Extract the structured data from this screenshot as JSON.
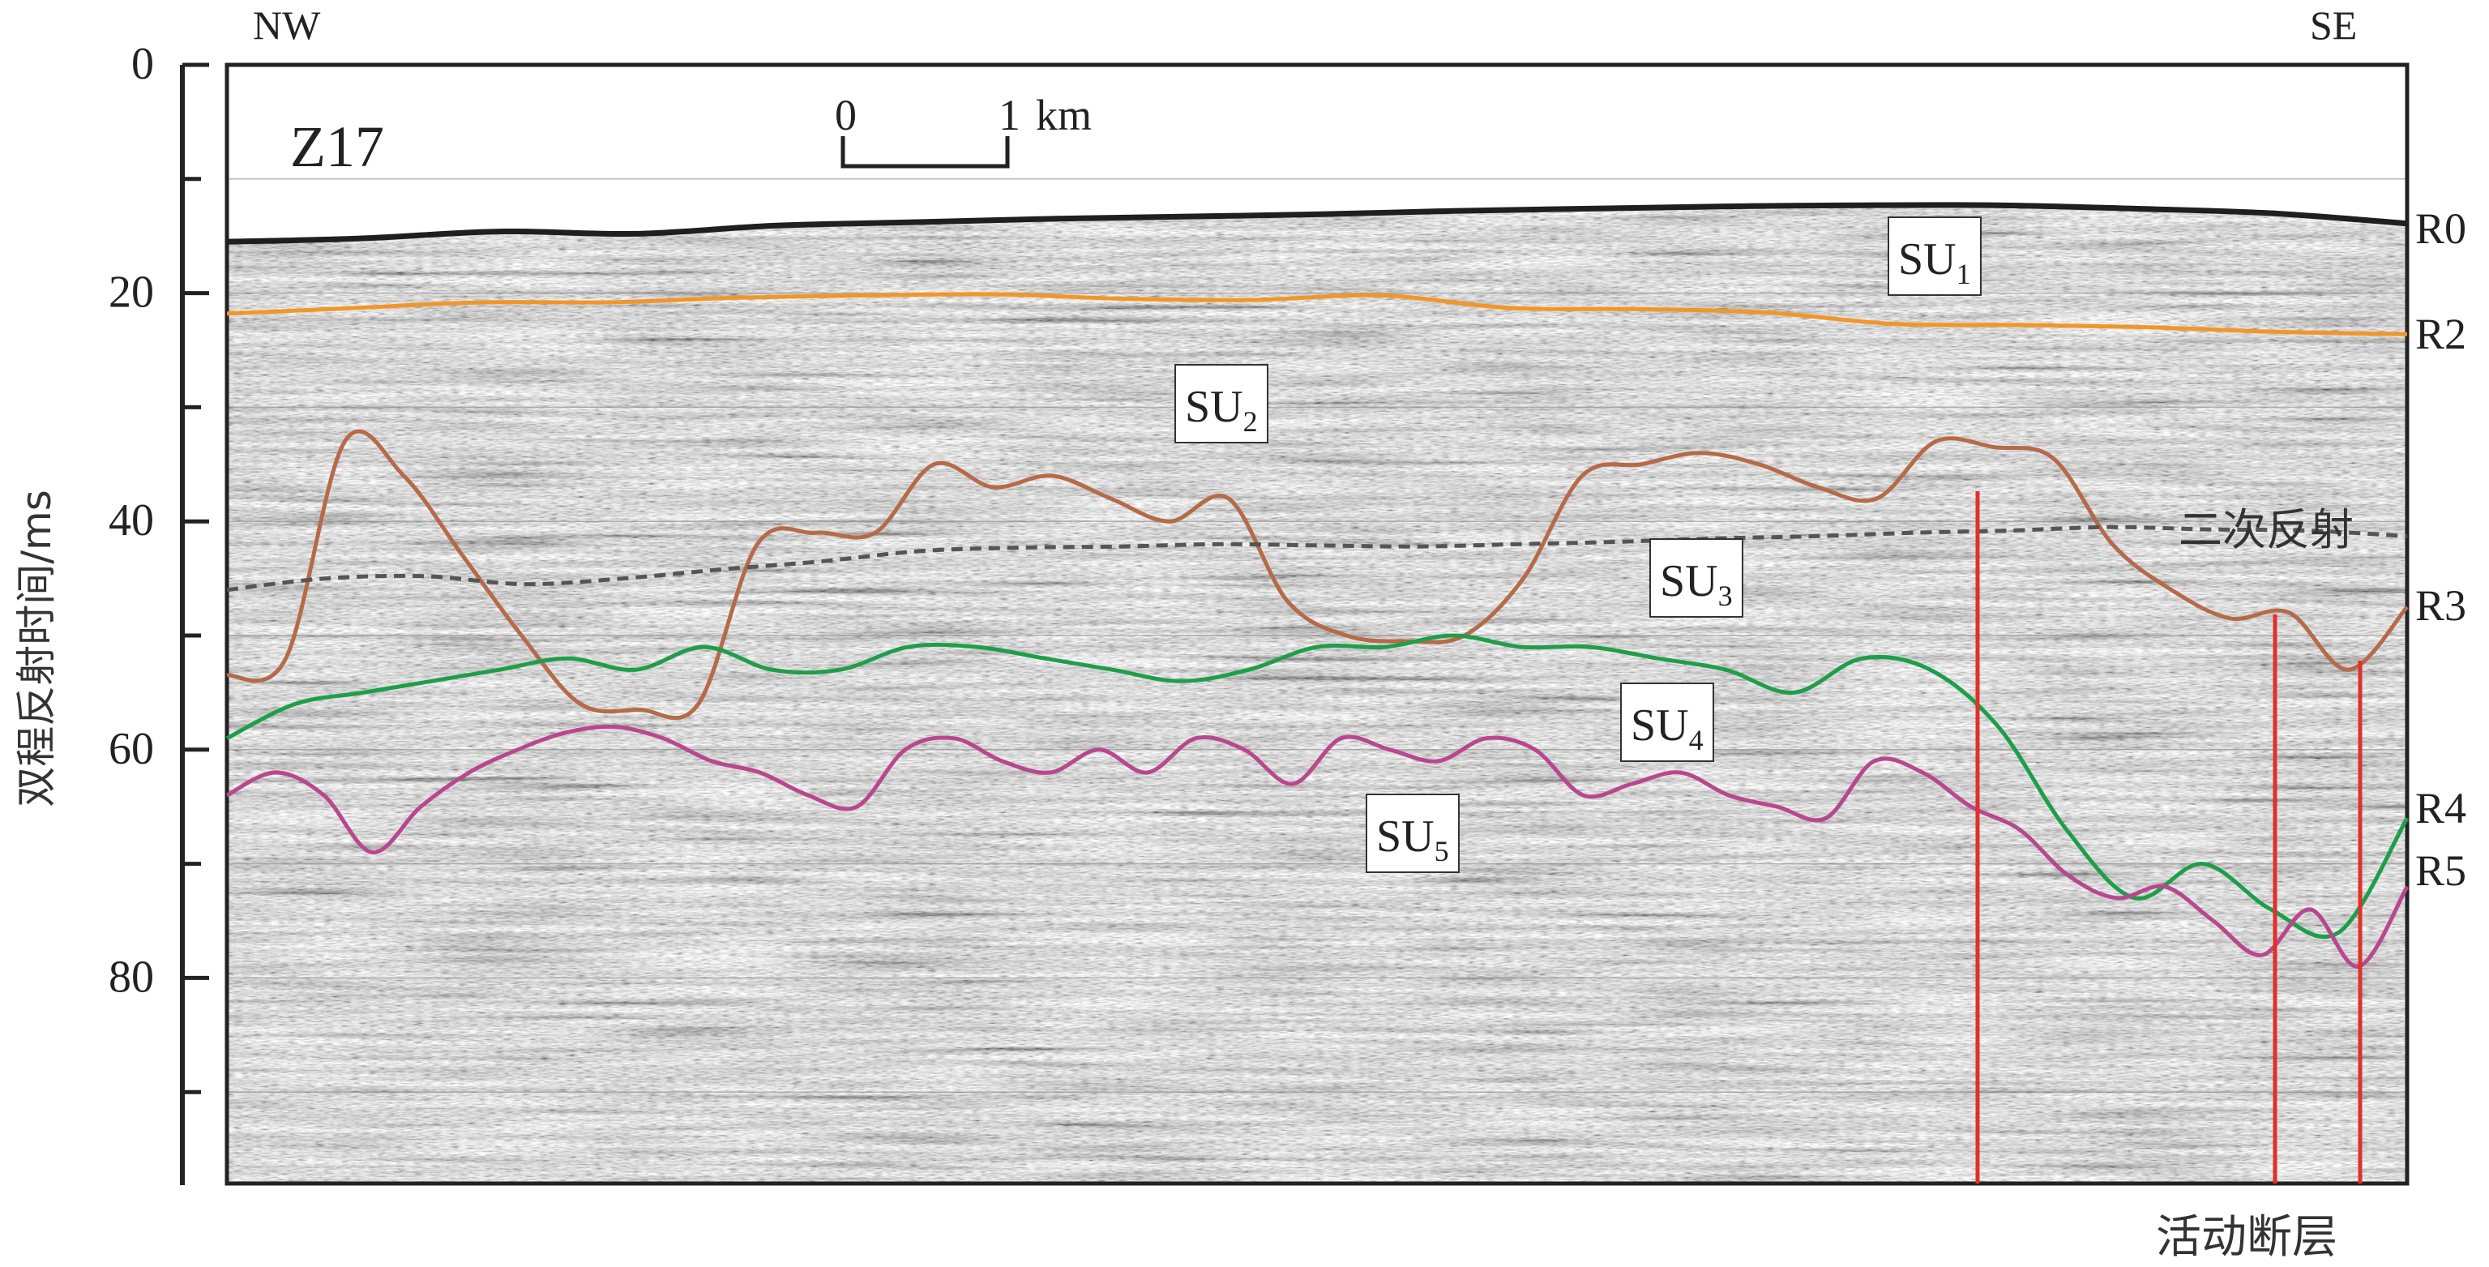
{
  "profile_id": "Z17",
  "orientation": {
    "left": "NW",
    "right": "SE"
  },
  "y_axis": {
    "label": "双程反射时间/ms",
    "ticks": [
      0,
      20,
      40,
      60,
      80
    ],
    "range": [
      0,
      98
    ],
    "reversed": true
  },
  "scale_bar": {
    "start": "0",
    "end": "1",
    "unit": "km",
    "length_km": 1
  },
  "horizons": [
    {
      "name": "R0",
      "color": "#1f1f1f",
      "depth_ms": [
        15.5,
        15.2,
        14.6,
        14.8,
        14.1,
        13.8,
        13.5,
        13.3,
        13.1,
        12.8,
        12.6,
        12.4,
        12.3,
        12.3,
        12.6,
        13.0,
        13.9
      ]
    },
    {
      "name": "R2",
      "color": "#f0962a",
      "depth_ms": [
        21.8,
        21.3,
        20.8,
        20.8,
        20.4,
        20.2,
        20.1,
        20.5,
        20.6,
        20.2,
        21.3,
        21.4,
        21.7,
        22.7,
        22.8,
        23.0,
        23.4,
        23.6
      ]
    },
    {
      "name": "R3",
      "color": "#b56a4a",
      "depth_ms": [
        53.5,
        52,
        33,
        36,
        43,
        50,
        56,
        56.5,
        56,
        42,
        41,
        41,
        35,
        37,
        36,
        38,
        40,
        38,
        47,
        50,
        50.5,
        50,
        45,
        36,
        35,
        34,
        35,
        37,
        38,
        33,
        33.5,
        34.5,
        42,
        46,
        48.5,
        48,
        53,
        47.5
      ]
    },
    {
      "name": "R4",
      "color": "#1f9e4a",
      "depth_ms": [
        59,
        56,
        55,
        54,
        53,
        52,
        53,
        51,
        53,
        53,
        51,
        51,
        52,
        53,
        54,
        53,
        51,
        51,
        50,
        51,
        51,
        52,
        53,
        55,
        52,
        53,
        58,
        67,
        73,
        70,
        74,
        76,
        66
      ]
    },
    {
      "name": "R5",
      "color": "#b8488e",
      "depth_ms": [
        64,
        62,
        64,
        69,
        65,
        62,
        60,
        58.5,
        58,
        59,
        61,
        62,
        64,
        65,
        60,
        59,
        61,
        62,
        60,
        62,
        59,
        60,
        63,
        59,
        60,
        61,
        59,
        60,
        64,
        63,
        62,
        64,
        65,
        66,
        61,
        62,
        65,
        67,
        71,
        73,
        72,
        75,
        78,
        74,
        79,
        72
      ]
    }
  ],
  "reverberation": {
    "label": "二次反射",
    "color": "#555555",
    "depth_ms": [
      46,
      45,
      44.8,
      45.5,
      45,
      44.2,
      43.5,
      42.6,
      42.3,
      42.2,
      42,
      42.1,
      42.2,
      42,
      41.8,
      41.5,
      41.3,
      41,
      40.8,
      40.5,
      40.7,
      40.8,
      41.3
    ]
  },
  "units": [
    {
      "label": "SU",
      "sub": "1"
    },
    {
      "label": "SU",
      "sub": "2"
    },
    {
      "label": "SU",
      "sub": "3"
    },
    {
      "label": "SU",
      "sub": "4"
    },
    {
      "label": "SU",
      "sub": "5"
    }
  ],
  "faults": {
    "label": "活动断层",
    "color": "#e0302a",
    "count": 3
  }
}
